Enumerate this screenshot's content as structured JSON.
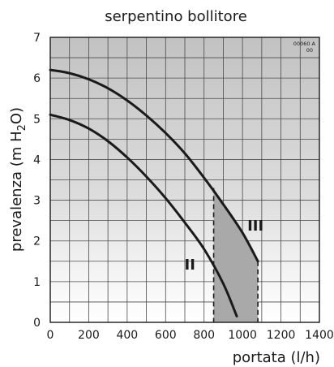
{
  "chart_data": {
    "type": "line",
    "title": "serpentino bollitore",
    "xlabel": "portata (l/h)",
    "ylabel": {
      "main": "prevalenza (m H",
      "sub": "2",
      "end": "O)"
    },
    "xlim": [
      0,
      1400
    ],
    "ylim": [
      0,
      7
    ],
    "x_ticks": [
      0,
      200,
      400,
      600,
      800,
      1000,
      1200,
      1400
    ],
    "y_ticks": [
      0,
      1,
      2,
      3,
      4,
      5,
      6,
      7
    ],
    "x_minor_step": 100,
    "y_minor_step": 0.5,
    "grid": true,
    "code": [
      "00060 A",
      "00"
    ],
    "series": [
      {
        "label": "II",
        "points": [
          [
            0,
            5.1
          ],
          [
            100,
            4.97
          ],
          [
            200,
            4.76
          ],
          [
            300,
            4.45
          ],
          [
            400,
            4.05
          ],
          [
            500,
            3.58
          ],
          [
            600,
            3.05
          ],
          [
            700,
            2.45
          ],
          [
            800,
            1.8
          ],
          [
            900,
            0.95
          ],
          [
            970,
            0.15
          ]
        ]
      },
      {
        "label": "III",
        "points": [
          [
            0,
            6.2
          ],
          [
            100,
            6.12
          ],
          [
            200,
            5.97
          ],
          [
            300,
            5.75
          ],
          [
            400,
            5.45
          ],
          [
            500,
            5.08
          ],
          [
            600,
            4.65
          ],
          [
            700,
            4.15
          ],
          [
            800,
            3.55
          ],
          [
            900,
            2.9
          ],
          [
            1000,
            2.2
          ],
          [
            1080,
            1.5
          ]
        ]
      }
    ],
    "shaded_region": [
      [
        850,
        3.3
      ],
      [
        900,
        2.9
      ],
      [
        1000,
        2.2
      ],
      [
        1080,
        1.5
      ],
      [
        1080,
        0
      ],
      [
        850,
        0
      ]
    ],
    "region_bounds_x": [
      850,
      1080
    ]
  }
}
